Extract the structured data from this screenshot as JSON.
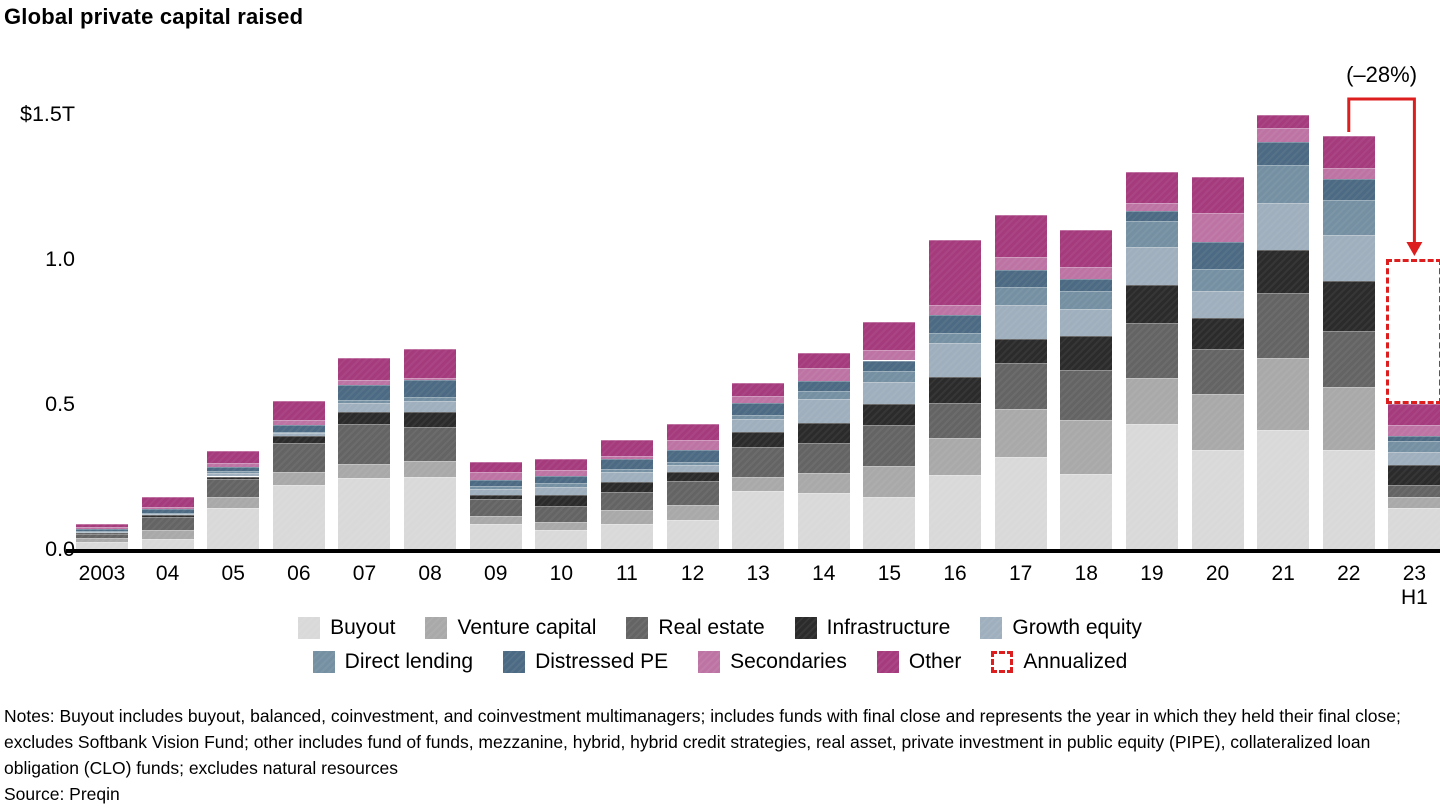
{
  "title": "Global private capital raised",
  "annotation": {
    "decline_label": "(–28%)"
  },
  "notes": "Notes: Buyout includes buyout, balanced, coinvestment, and coinvestment multimanagers; includes funds with final close and represents the year in which they held their final close; excludes Softbank Vision Fund; other includes fund of funds, mezzanine, hybrid, hybrid credit strategies, real asset, private investment in public equity (PIPE), collateralized loan obligation (CLO) funds; excludes natural resources",
  "source": "Source: Preqin",
  "colors": {
    "annualized_red": "#dc1e1e",
    "axis": "#000000"
  },
  "chart_data": {
    "type": "bar",
    "stacked": true,
    "unit": "$B",
    "title": "Global private capital raised",
    "categories": [
      "2003",
      "04",
      "05",
      "06",
      "07",
      "08",
      "09",
      "10",
      "11",
      "12",
      "13",
      "14",
      "15",
      "16",
      "17",
      "18",
      "19",
      "20",
      "21",
      "22",
      "23"
    ],
    "last_category_sublabel": "H1",
    "y_axis": {
      "ticks": [
        {
          "value": 1500,
          "label": "$1.5T"
        },
        {
          "value": 1000,
          "label": "1.0"
        },
        {
          "value": 500,
          "label": "0.5"
        },
        {
          "value": 0,
          "label": "0.0"
        }
      ],
      "grid": false,
      "max": 1500
    },
    "legend_position": "bottom",
    "series": [
      {
        "name": "Buyout",
        "color": "#d9d9d9",
        "values": [
          25,
          35,
          140,
          220,
          245,
          248,
          85,
          65,
          85,
          100,
          200,
          193,
          180,
          255,
          317,
          260,
          430,
          340,
          409,
          340,
          140
        ]
      },
      {
        "name": "Venture capital",
        "color": "#a9a9a9",
        "values": [
          12,
          30,
          41,
          46,
          48,
          55,
          30,
          27,
          48,
          50,
          48,
          70,
          107,
          127,
          166,
          186,
          160,
          196,
          251,
          217,
          41
        ]
      },
      {
        "name": "Real estate",
        "color": "#646464",
        "values": [
          15,
          45,
          59,
          98,
          138,
          118,
          58,
          57,
          65,
          84,
          105,
          103,
          140,
          120,
          160,
          170,
          190,
          155,
          224,
          196,
          38
        ]
      },
      {
        "name": "Infrastructure",
        "color": "#2b2b2b",
        "values": [
          3,
          6,
          10,
          24,
          41,
          50,
          14,
          37,
          34,
          30,
          50,
          70,
          72,
          92,
          80,
          120,
          130,
          107,
          148,
          172,
          69
        ]
      },
      {
        "name": "Growth equity",
        "color": "#9fafbd",
        "values": [
          4,
          6,
          13,
          12,
          31,
          40,
          20,
          28,
          33,
          25,
          44,
          80,
          76,
          115,
          120,
          93,
          130,
          93,
          162,
          159,
          45
        ]
      },
      {
        "name": "Direct lending",
        "color": "#7590a2",
        "values": [
          2,
          3,
          5,
          5,
          10,
          12,
          10,
          12,
          12,
          12,
          15,
          28,
          40,
          35,
          62,
          62,
          90,
          75,
          131,
          120,
          40
        ]
      },
      {
        "name": "Distressed PE",
        "color": "#4c6a83",
        "values": [
          8,
          13,
          14,
          22,
          52,
          60,
          20,
          27,
          34,
          42,
          40,
          34,
          35,
          62,
          58,
          40,
          35,
          93,
          79,
          72,
          15
        ]
      },
      {
        "name": "Secondaries",
        "color": "#bd74a4",
        "values": [
          6,
          6,
          13,
          19,
          17,
          7,
          30,
          20,
          10,
          32,
          24,
          45,
          35,
          35,
          45,
          40,
          28,
          100,
          48,
          38,
          38
        ]
      },
      {
        "name": "Other",
        "color": "#a53b7d",
        "values": [
          12,
          36,
          44,
          66,
          76,
          100,
          33,
          37,
          55,
          55,
          48,
          52,
          97,
          224,
          145,
          130,
          107,
          125,
          45,
          110,
          75
        ]
      }
    ],
    "annualized": {
      "category_index": 20,
      "value": 1000,
      "label": "Annualized",
      "decline_label": "(–28%)"
    }
  },
  "legend": {
    "row1": [
      "Buyout",
      "Venture capital",
      "Real estate",
      "Infrastructure",
      "Growth equity"
    ],
    "row2": [
      "Direct lending",
      "Distressed PE",
      "Secondaries",
      "Other",
      "Annualized"
    ]
  }
}
